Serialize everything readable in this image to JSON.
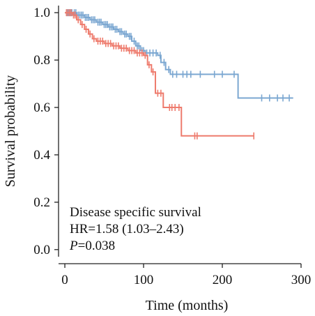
{
  "chart_data": {
    "type": "line",
    "subtype": "kaplan-meier",
    "title": "",
    "xlabel": "Time (months)",
    "ylabel": "Survival probability",
    "xlim": [
      -8,
      300
    ],
    "ylim": [
      -0.03,
      1.03
    ],
    "x_ticks": [
      0,
      100,
      200,
      300
    ],
    "y_ticks": [
      0.0,
      0.2,
      0.4,
      0.6,
      0.8,
      1.0
    ],
    "y_tick_labels": [
      "0.0",
      "0.2",
      "0.4",
      "0.6",
      "0.8",
      "1.0"
    ],
    "grid": false,
    "legend": "none",
    "annotation": {
      "line1": "Disease specific survival",
      "line2": "HR=1.58 (1.03–2.43)",
      "line3_italic": "P",
      "line3_rest": "=0.038"
    },
    "series": [
      {
        "color": "#7BA7D1",
        "steps": [
          [
            0,
            1.0
          ],
          [
            15,
            0.99
          ],
          [
            25,
            0.98
          ],
          [
            32,
            0.97
          ],
          [
            40,
            0.96
          ],
          [
            48,
            0.95
          ],
          [
            55,
            0.94
          ],
          [
            62,
            0.93
          ],
          [
            68,
            0.92
          ],
          [
            74,
            0.91
          ],
          [
            80,
            0.9
          ],
          [
            85,
            0.88
          ],
          [
            90,
            0.86
          ],
          [
            96,
            0.84
          ],
          [
            102,
            0.83
          ],
          [
            118,
            0.82
          ],
          [
            122,
            0.79
          ],
          [
            128,
            0.76
          ],
          [
            134,
            0.74
          ],
          [
            220,
            0.64
          ],
          [
            290,
            0.64
          ]
        ],
        "censor_x": [
          3,
          5,
          7,
          9,
          12,
          14,
          17,
          19,
          21,
          23,
          26,
          28,
          30,
          34,
          36,
          38,
          42,
          44,
          46,
          50,
          52,
          54,
          57,
          59,
          61,
          64,
          66,
          70,
          72,
          76,
          78,
          82,
          84,
          88,
          92,
          94,
          98,
          100,
          104,
          108,
          112,
          116,
          121,
          126,
          132,
          137,
          142,
          150,
          155,
          160,
          172,
          190,
          200,
          215,
          250,
          260,
          270,
          277,
          285
        ]
      },
      {
        "color": "#EE7B6D",
        "steps": [
          [
            0,
            1.0
          ],
          [
            10,
            0.99
          ],
          [
            15,
            0.97
          ],
          [
            20,
            0.95
          ],
          [
            25,
            0.93
          ],
          [
            30,
            0.91
          ],
          [
            35,
            0.89
          ],
          [
            40,
            0.88
          ],
          [
            50,
            0.87
          ],
          [
            60,
            0.86
          ],
          [
            70,
            0.85
          ],
          [
            80,
            0.84
          ],
          [
            90,
            0.83
          ],
          [
            100,
            0.82
          ],
          [
            105,
            0.78
          ],
          [
            110,
            0.75
          ],
          [
            115,
            0.66
          ],
          [
            125,
            0.6
          ],
          [
            148,
            0.48
          ],
          [
            240,
            0.48
          ]
        ],
        "censor_x": [
          2,
          4,
          6,
          8,
          11,
          13,
          17,
          22,
          27,
          32,
          37,
          42,
          45,
          48,
          52,
          55,
          58,
          62,
          65,
          68,
          72,
          75,
          78,
          82,
          85,
          88,
          92,
          95,
          98,
          102,
          107,
          112,
          118,
          122,
          133,
          136,
          140,
          145,
          165,
          168,
          240
        ]
      }
    ]
  }
}
